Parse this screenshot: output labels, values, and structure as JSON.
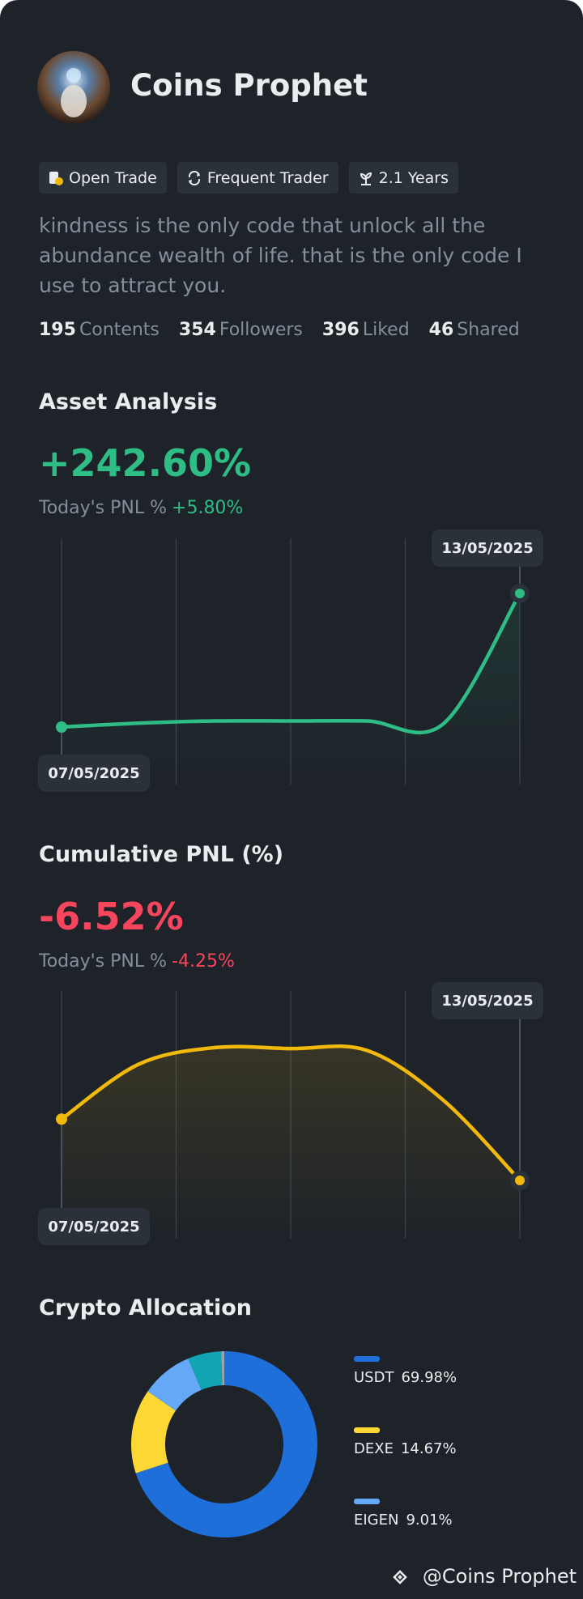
{
  "profile": {
    "name": "Coins Prophet",
    "badges": [
      "Open Trade",
      "Frequent Trader",
      "2.1 Years"
    ],
    "bio": "kindness is the only code that unlock all the abundance wealth of life. that is the only code I use to attract you.",
    "stats": [
      {
        "value": 195,
        "label": "Contents"
      },
      {
        "value": 354,
        "label": "Followers"
      },
      {
        "value": 396,
        "label": "Liked"
      },
      {
        "value": 46,
        "label": "Shared"
      }
    ]
  },
  "chart_data": [
    {
      "type": "line",
      "title": "Asset Analysis",
      "headline": "+242.60%",
      "headline_color": "#2ebd85",
      "today_label": "Today's PNL %",
      "today_value": "+5.80%",
      "x": [
        "07/05/2025",
        null,
        null,
        null,
        null,
        null,
        "13/05/2025"
      ],
      "values": [
        0,
        7,
        11,
        11,
        11,
        6,
        242.6
      ],
      "color": "#2ebd85"
    },
    {
      "type": "line",
      "title": "Cumulative PNL (%)",
      "headline": "-6.52%",
      "headline_color": "#f6465d",
      "today_label": "Today's PNL %",
      "today_value": "-4.25%",
      "x": [
        "07/05/2025",
        null,
        null,
        null,
        null,
        null,
        "13/05/2025"
      ],
      "values": [
        0,
        5.8,
        7.6,
        7.5,
        7.3,
        2.0,
        -6.52
      ],
      "color": "#f0b90b"
    },
    {
      "type": "donut",
      "title": "Crypto Allocation",
      "categories": [
        "USDT",
        "DEXE",
        "EIGEN",
        null,
        null
      ],
      "values": [
        69.98,
        14.67,
        9.01,
        5.8,
        0.54
      ],
      "value_labels": [
        "69.98%",
        "14.67%",
        "9.01%",
        null,
        null
      ],
      "colors": [
        "#1f6fdb",
        "#fdd835",
        "#64a8f6",
        "#13a4b4",
        "#9aa4b0"
      ]
    }
  ],
  "watermark": "@Coins Prophet"
}
